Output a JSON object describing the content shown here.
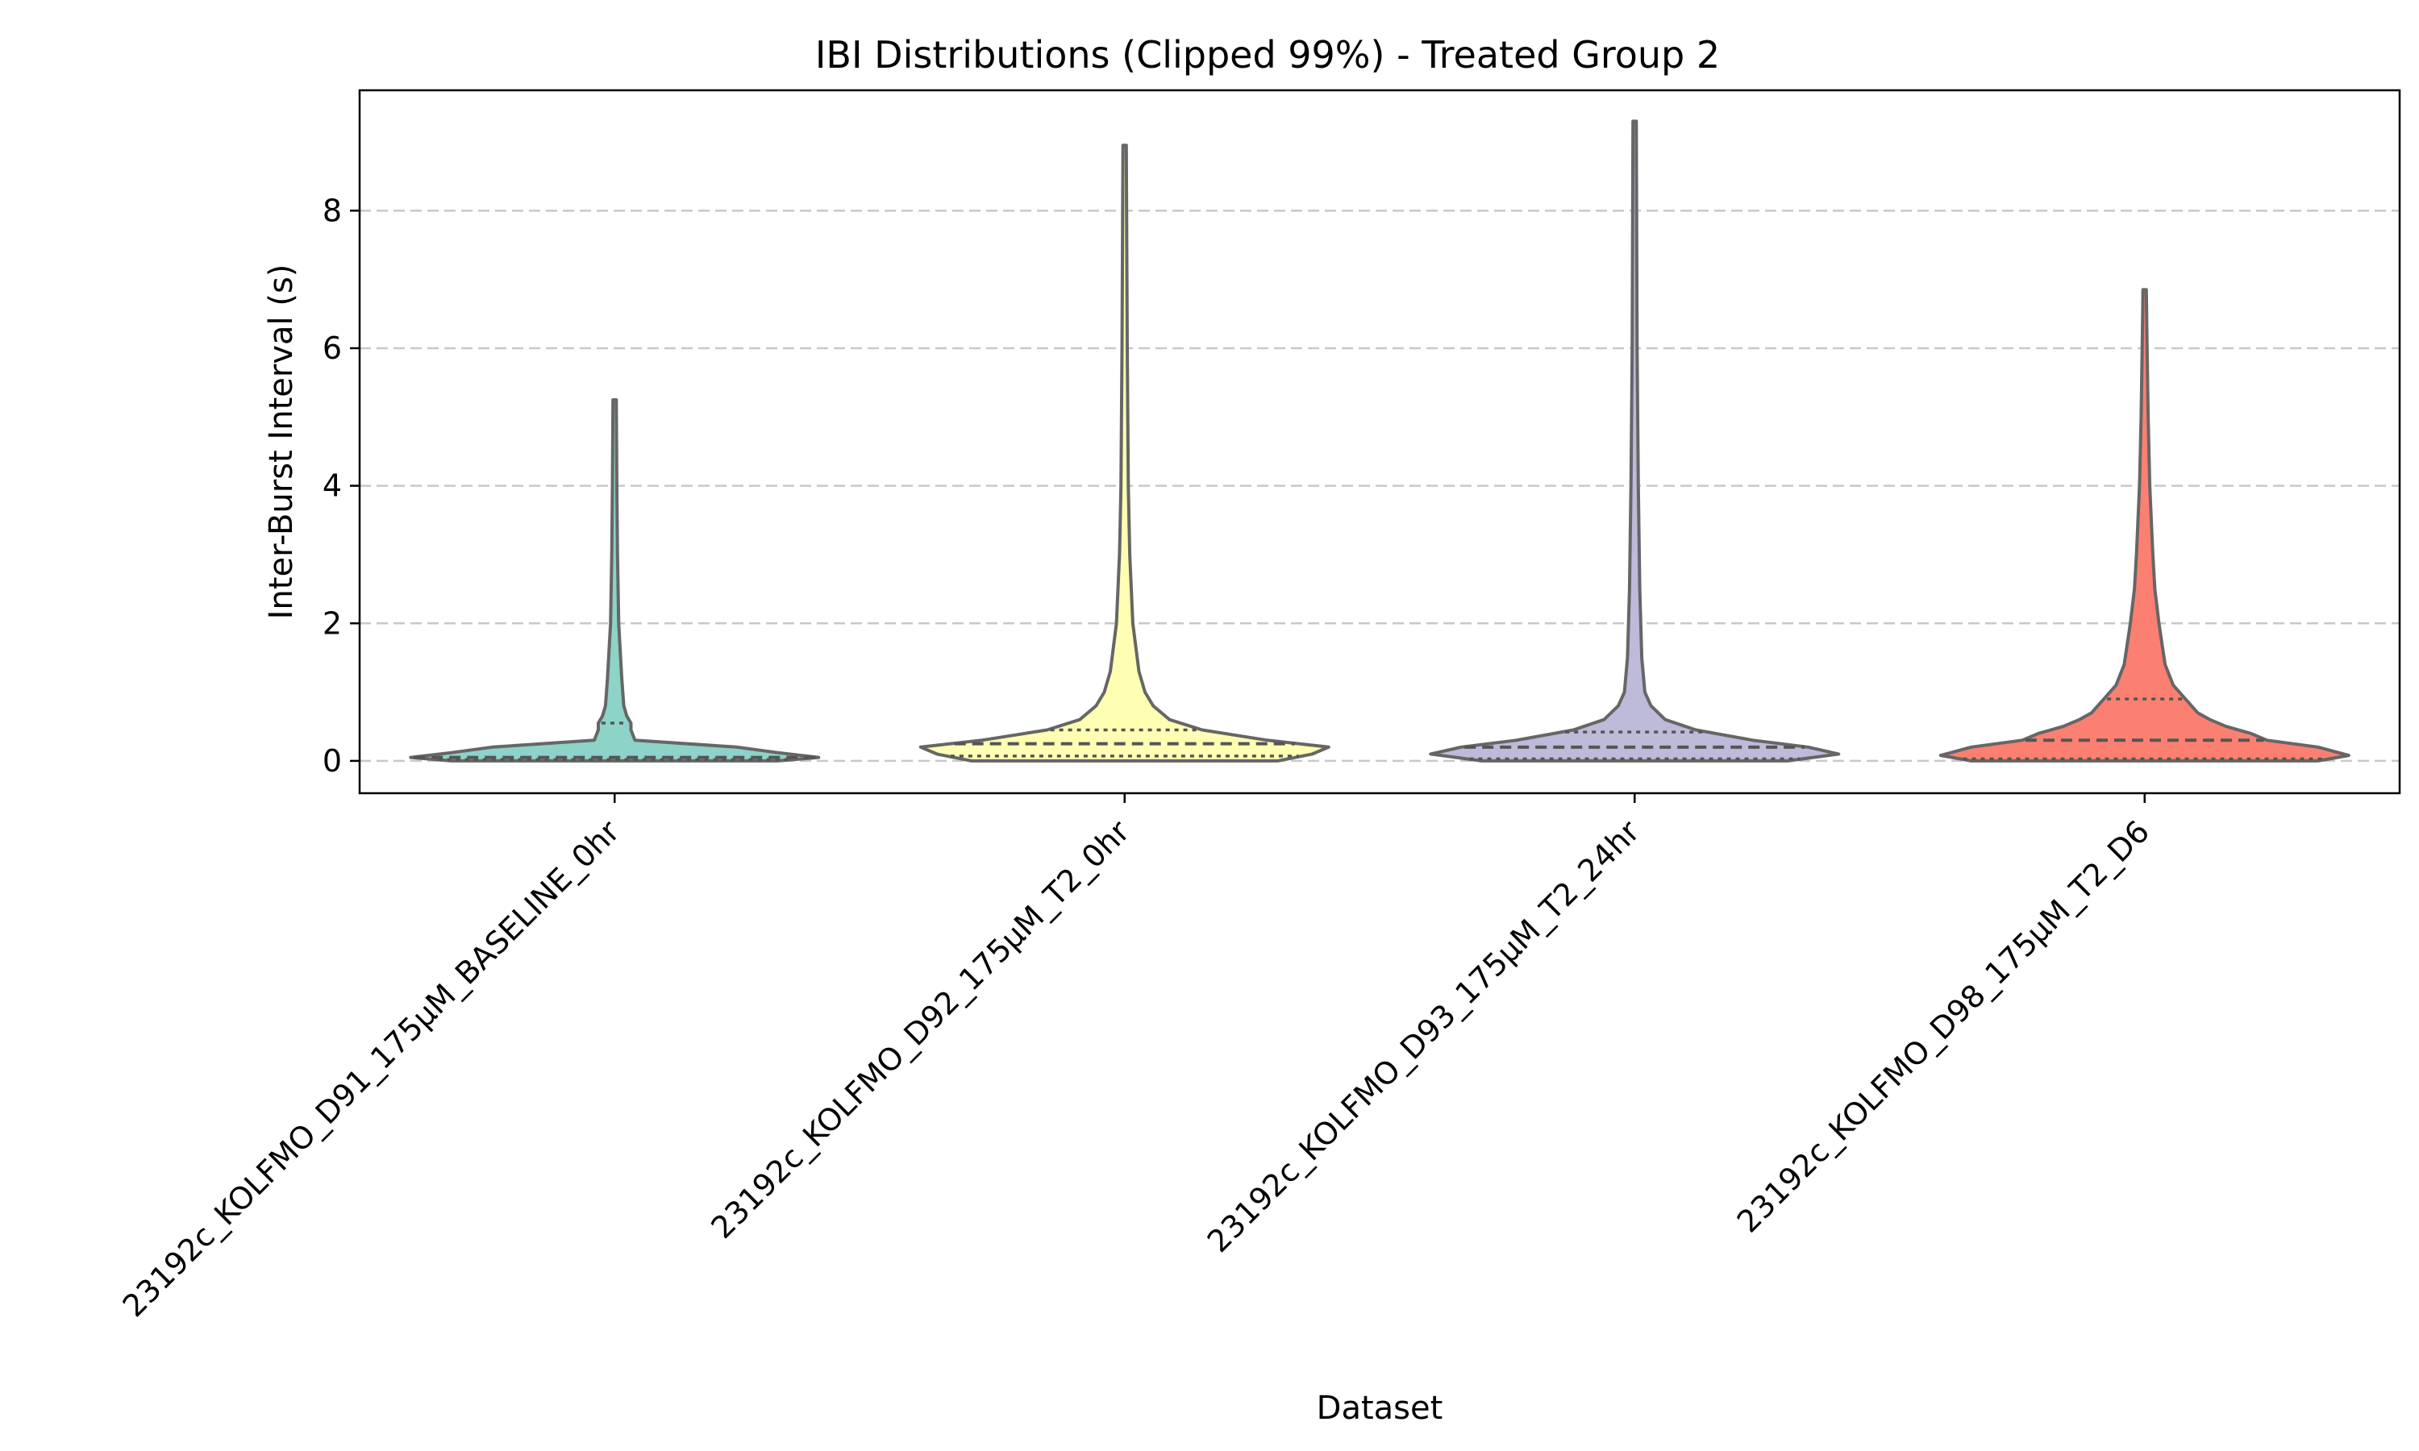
{
  "chart_data": {
    "type": "violin",
    "title": "IBI Distributions (Clipped 99%) - Treated Group 2",
    "xlabel": "Dataset",
    "ylabel": "Inter-Burst Interval (s)",
    "ylim": [
      -0.47,
      9.75
    ],
    "yticks": [
      0,
      2,
      4,
      6,
      8
    ],
    "grid": "y-dashed",
    "categories": [
      "23192c_KOLFMO_D91_175µM_BASELINE_0hr",
      "23192c_KOLFMO_D92_175µM_T2_0hr",
      "23192c_KOLFMO_D93_175µM_T2_24hr",
      "23192c_KOLFMO_D98_175µM_T2_D6"
    ],
    "series": [
      {
        "color": "#8dd3c7",
        "min": 0.0,
        "max": 5.25,
        "q1": 0.02,
        "median": 0.05,
        "q3": 0.55,
        "profile": [
          [
            0.0,
            0.8
          ],
          [
            0.05,
            1.0
          ],
          [
            0.12,
            0.8
          ],
          [
            0.2,
            0.6
          ],
          [
            0.3,
            0.1
          ],
          [
            0.45,
            0.08
          ],
          [
            0.55,
            0.08
          ],
          [
            0.65,
            0.06
          ],
          [
            0.8,
            0.045
          ],
          [
            1.2,
            0.035
          ],
          [
            2.0,
            0.02
          ],
          [
            3.0,
            0.014
          ],
          [
            4.0,
            0.011
          ],
          [
            5.25,
            0.008
          ]
        ]
      },
      {
        "color": "#ffffb3",
        "min": 0.0,
        "max": 8.95,
        "q1": 0.07,
        "median": 0.25,
        "q3": 0.45,
        "profile": [
          [
            0.0,
            0.75
          ],
          [
            0.1,
            0.92
          ],
          [
            0.2,
            1.0
          ],
          [
            0.3,
            0.7
          ],
          [
            0.45,
            0.38
          ],
          [
            0.6,
            0.22
          ],
          [
            0.8,
            0.14
          ],
          [
            1.0,
            0.1
          ],
          [
            1.3,
            0.07
          ],
          [
            2.0,
            0.04
          ],
          [
            3.0,
            0.025
          ],
          [
            4.0,
            0.018
          ],
          [
            6.0,
            0.013
          ],
          [
            8.95,
            0.008
          ]
        ]
      },
      {
        "color": "#bebada",
        "min": 0.0,
        "max": 9.3,
        "q1": 0.03,
        "median": 0.2,
        "q3": 0.42,
        "profile": [
          [
            0.0,
            0.75
          ],
          [
            0.1,
            1.0
          ],
          [
            0.2,
            0.85
          ],
          [
            0.3,
            0.58
          ],
          [
            0.45,
            0.3
          ],
          [
            0.6,
            0.15
          ],
          [
            0.8,
            0.08
          ],
          [
            1.0,
            0.05
          ],
          [
            1.5,
            0.035
          ],
          [
            2.5,
            0.025
          ],
          [
            4.0,
            0.018
          ],
          [
            6.0,
            0.012
          ],
          [
            9.3,
            0.008
          ]
        ]
      },
      {
        "color": "#fb8072",
        "min": 0.0,
        "max": 6.85,
        "q1": 0.03,
        "median": 0.3,
        "q3": 0.9,
        "profile": [
          [
            0.0,
            0.85
          ],
          [
            0.08,
            1.0
          ],
          [
            0.2,
            0.85
          ],
          [
            0.3,
            0.6
          ],
          [
            0.4,
            0.52
          ],
          [
            0.5,
            0.4
          ],
          [
            0.6,
            0.32
          ],
          [
            0.7,
            0.26
          ],
          [
            0.9,
            0.2
          ],
          [
            1.1,
            0.14
          ],
          [
            1.4,
            0.1
          ],
          [
            2.0,
            0.07
          ],
          [
            2.5,
            0.05
          ],
          [
            3.0,
            0.04
          ],
          [
            4.0,
            0.025
          ],
          [
            5.0,
            0.017
          ],
          [
            6.0,
            0.012
          ],
          [
            6.85,
            0.008
          ]
        ]
      }
    ]
  }
}
